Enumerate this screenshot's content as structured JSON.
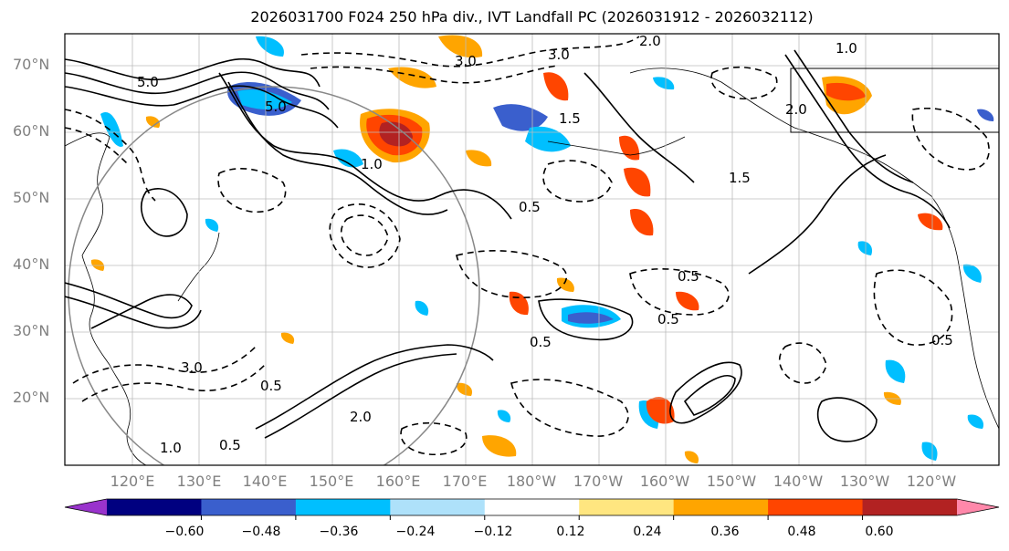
{
  "title": "2026031700 F024 250 hPa div., IVT Landfall PC (2026031912 - 2026032112)",
  "map": {
    "projection": "PlateCarree",
    "lon_range": [
      "110°E",
      "115°W"
    ],
    "lat_range": [
      "10°N",
      "75°N"
    ],
    "lat_ticks": [
      "70°N",
      "60°N",
      "50°N",
      "40°N",
      "30°N",
      "20°N"
    ],
    "lon_ticks": [
      "120°E",
      "130°E",
      "140°E",
      "150°E",
      "160°E",
      "170°E",
      "180°W",
      "170°W",
      "160°W",
      "150°W",
      "140°W",
      "130°W",
      "120°W"
    ],
    "contour_labels": [
      "5.0",
      "5.0",
      "3.0",
      "3.0",
      "2.0",
      "2.0",
      "1.5",
      "1.5",
      "1.0",
      "1.0",
      "0.5",
      "0.5",
      "0.5",
      "0.5",
      "0.5",
      "0.5",
      "3.0",
      "2.0",
      "1.0",
      "0.5"
    ],
    "overlay": "IVT landfall probability contours (solid positive, dashed negative); colour fill 250 hPa divergence"
  },
  "colorbar": {
    "ticks": [
      "−0.60",
      "−0.48",
      "−0.36",
      "−0.24",
      "−0.12",
      "0.12",
      "0.24",
      "0.36",
      "0.48",
      "0.60"
    ],
    "colors": [
      "#9933cc",
      "#000080",
      "#3a5fcd",
      "#00bfff",
      "#aee1fa",
      "#ffffff",
      "#ffe680",
      "#ffa500",
      "#ff4500",
      "#b22222",
      "#ff88aa"
    ],
    "extend": "both"
  }
}
